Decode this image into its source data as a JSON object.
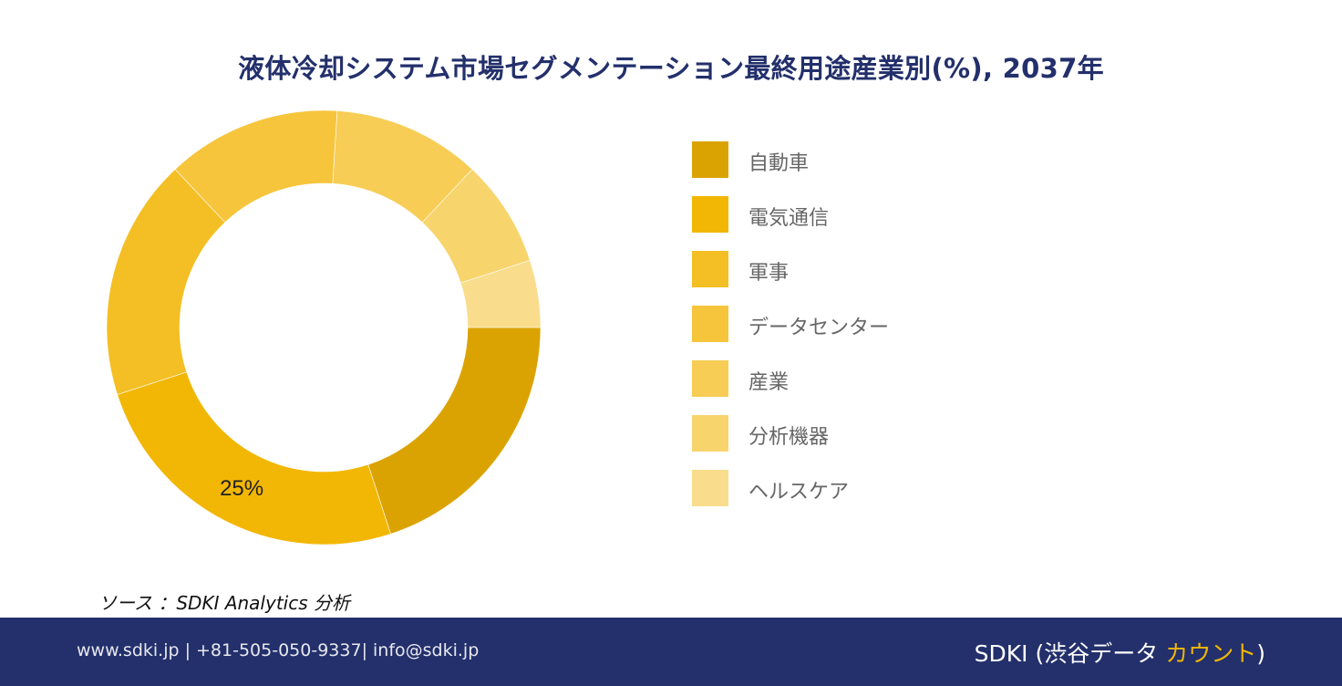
{
  "title": "液体冷却システム市場セグメンテーション最終用途産業別(%), 2037年",
  "chart_data": {
    "type": "pie",
    "donut": true,
    "categories": [
      "自動車",
      "電気通信",
      "軍事",
      "データセンター",
      "産業",
      "分析機器",
      "ヘルスケア"
    ],
    "values": [
      20,
      25,
      18,
      13,
      11,
      8,
      5
    ],
    "labels_shown": [
      "",
      "25%",
      "",
      "",
      "",
      "",
      ""
    ],
    "colors": [
      "#dba302",
      "#f2b705",
      "#f4bf24",
      "#f6c53c",
      "#f7cd55",
      "#f8d46d",
      "#f9dd8c"
    ],
    "legend_position": "right"
  },
  "source": "ソース ：SDKI Analytics  分析",
  "footer": {
    "contact": "www.sdki.jp | +81-505-050-9337| info@sdki.jp",
    "brand_prefix": "SDKI (渋谷データ ",
    "brand_accent": "カウント",
    "brand_suffix": ")"
  }
}
